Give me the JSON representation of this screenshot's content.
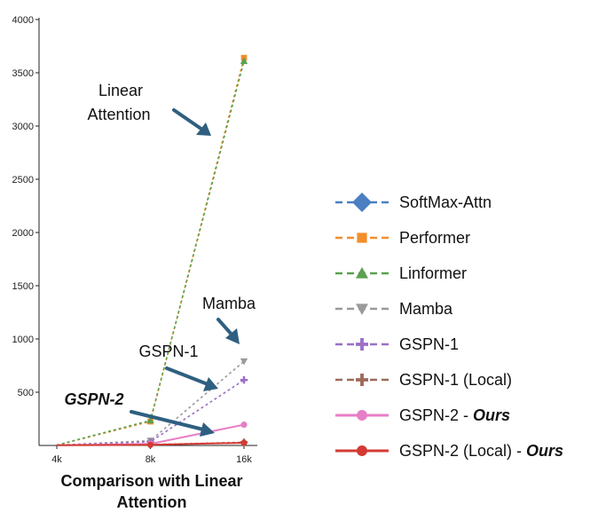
{
  "chart_data": {
    "type": "line",
    "title": "",
    "xlabel": "Comparison with Linear Attention",
    "ylabel": "",
    "categories": [
      "4k",
      "8k",
      "16k"
    ],
    "ylim": [
      0,
      4000
    ],
    "yticks": [
      500,
      1000,
      1500,
      2000,
      2500,
      3000,
      3500,
      4000
    ],
    "series": [
      {
        "name": "SoftMax-Attn",
        "values": [
          null,
          null,
          null
        ],
        "color": "#4a7fc1",
        "marker": "diamond",
        "dash": "dashed"
      },
      {
        "name": "Performer",
        "values": [
          3,
          225,
          3640
        ],
        "color": "#f28e2b",
        "marker": "square",
        "dash": "dashed"
      },
      {
        "name": "Linformer",
        "values": [
          3,
          235,
          3610
        ],
        "color": "#59a14f",
        "marker": "triangle-up",
        "dash": "dashed"
      },
      {
        "name": "Mamba",
        "values": [
          3,
          45,
          790
        ],
        "color": "#9a9a9a",
        "marker": "triangle-down",
        "dash": "dashed"
      },
      {
        "name": "GSPN-1",
        "values": [
          2,
          35,
          615
        ],
        "color": "#9b6fc6",
        "marker": "plus",
        "dash": "dashed"
      },
      {
        "name": "GSPN-1 (Local)",
        "values": [
          2,
          8,
          30
        ],
        "color": "#9c6b5a",
        "marker": "plus",
        "dash": "dashed"
      },
      {
        "name": "GSPN-2 - ",
        "bold_suffix": "Ours",
        "values": [
          2,
          15,
          195
        ],
        "color": "#e77ec6",
        "marker": "circle",
        "dash": "solid"
      },
      {
        "name": "GSPN-2 (Local) - ",
        "bold_suffix": "Ours",
        "values": [
          2,
          6,
          25
        ],
        "color": "#d33a34",
        "marker": "circle",
        "dash": "solid"
      }
    ],
    "annotations": [
      {
        "id": "linear-line1",
        "text": "Linear"
      },
      {
        "id": "linear-line2",
        "text": "Attention"
      },
      {
        "id": "mamba",
        "text": "Mamba"
      },
      {
        "id": "gspn1",
        "text": "GSPN-1"
      },
      {
        "id": "gspn2",
        "text": "GSPN-2"
      }
    ],
    "legend_position": "right",
    "grid": false,
    "arrow_color": "#2f5f80"
  }
}
